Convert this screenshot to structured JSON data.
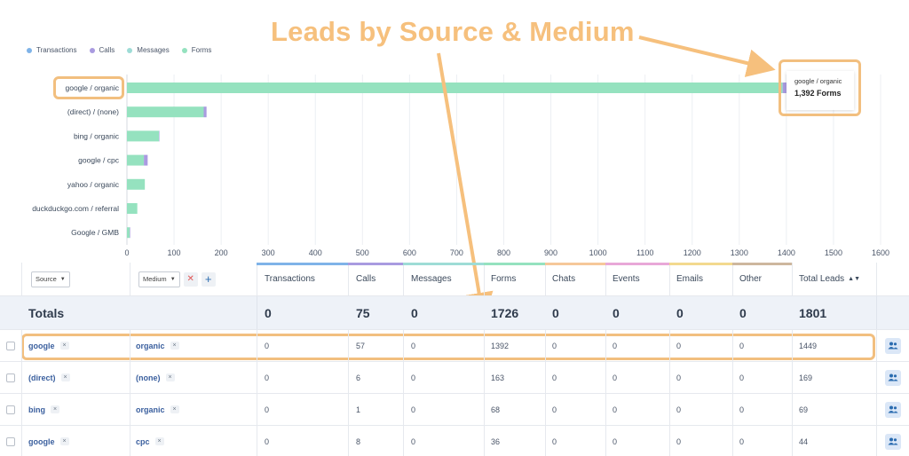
{
  "chart_data": {
    "type": "bar",
    "orientation": "horizontal",
    "stacked": true,
    "categories": [
      "google / organic",
      "(direct) / (none)",
      "bing / organic",
      "google / cpc",
      "yahoo / organic",
      "duckduckgo.com / referral",
      "Google / GMB"
    ],
    "series": [
      {
        "name": "Transactions",
        "values": [
          0,
          0,
          0,
          0,
          0,
          0,
          0
        ]
      },
      {
        "name": "Calls",
        "values": [
          57,
          6,
          1,
          8,
          0,
          0,
          1
        ]
      },
      {
        "name": "Messages",
        "values": [
          0,
          0,
          0,
          0,
          0,
          0,
          0
        ]
      },
      {
        "name": "Forms",
        "values": [
          1392,
          163,
          68,
          36,
          38,
          22,
          6
        ]
      }
    ],
    "x_ticks": [
      "0",
      "100",
      "200",
      "300",
      "400",
      "500",
      "600",
      "700",
      "800",
      "900",
      "1000",
      "1100",
      "1200",
      "1300",
      "1400",
      "1500",
      "1600"
    ],
    "xlim": [
      0,
      1600
    ],
    "grid": true,
    "legend_position": "top-left"
  },
  "colors": {
    "transactions": "#7fb3e8",
    "calls": "#a99be0",
    "messages": "#9edcd6",
    "forms": "#95e2bf",
    "annotation": "#f6c07d"
  },
  "legend": [
    "Transactions",
    "Calls",
    "Messages",
    "Forms"
  ],
  "annotation": {
    "title": "Leads by Source & Medium"
  },
  "tooltip": {
    "label": "google / organic",
    "value": "1,392 Forms"
  },
  "filters": {
    "source_label": "Source",
    "medium_label": "Medium",
    "remove_icon": "close-icon",
    "add_icon": "plus-icon"
  },
  "columns": [
    "Transactions",
    "Calls",
    "Messages",
    "Forms",
    "Chats",
    "Events",
    "Emails",
    "Other",
    "Total Leads"
  ],
  "header_bar_colors": [
    "#7fb3e8",
    "#a99be0",
    "#9edcd6",
    "#95e2bf",
    "#f6c89a",
    "#e8a8d8",
    "#f3d98e",
    "#cdb79e",
    "#c9ccd2"
  ],
  "totals": {
    "label": "Totals",
    "values": [
      "0",
      "75",
      "0",
      "1726",
      "0",
      "0",
      "0",
      "0",
      "1801"
    ]
  },
  "rows": [
    {
      "source": "google",
      "medium": "organic",
      "values": [
        "0",
        "57",
        "0",
        "1392",
        "0",
        "0",
        "0",
        "0",
        "1449"
      ]
    },
    {
      "source": "(direct)",
      "medium": "(none)",
      "values": [
        "0",
        "6",
        "0",
        "163",
        "0",
        "0",
        "0",
        "0",
        "169"
      ]
    },
    {
      "source": "bing",
      "medium": "organic",
      "values": [
        "0",
        "1",
        "0",
        "68",
        "0",
        "0",
        "0",
        "0",
        "69"
      ]
    },
    {
      "source": "google",
      "medium": "cpc",
      "values": [
        "0",
        "8",
        "0",
        "36",
        "0",
        "0",
        "0",
        "0",
        "44"
      ]
    }
  ],
  "tag_remove": "×",
  "row_action_icon": "people-icon"
}
